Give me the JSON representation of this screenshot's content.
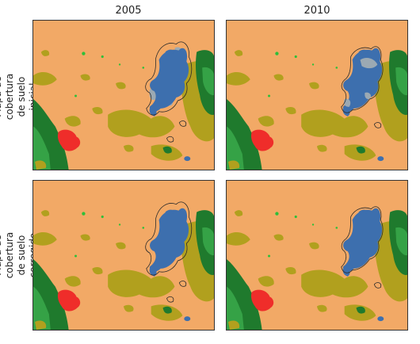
{
  "columns": [
    "2005",
    "2010"
  ],
  "rows": [
    "Mapa de cobertura de suelo\ninicial",
    "Mapa de cobertura de suelo\ncorregido"
  ],
  "colors": {
    "background": "#f2a966",
    "olive": "#b1a01e",
    "dark_green": "#1f7a2d",
    "mid_green": "#35a246",
    "bright_green": "#2fbf3a",
    "red": "#ef2d2a",
    "water": "#3d6fae",
    "gray": "#9ba9b3",
    "outline": "#2a2a2a"
  }
}
